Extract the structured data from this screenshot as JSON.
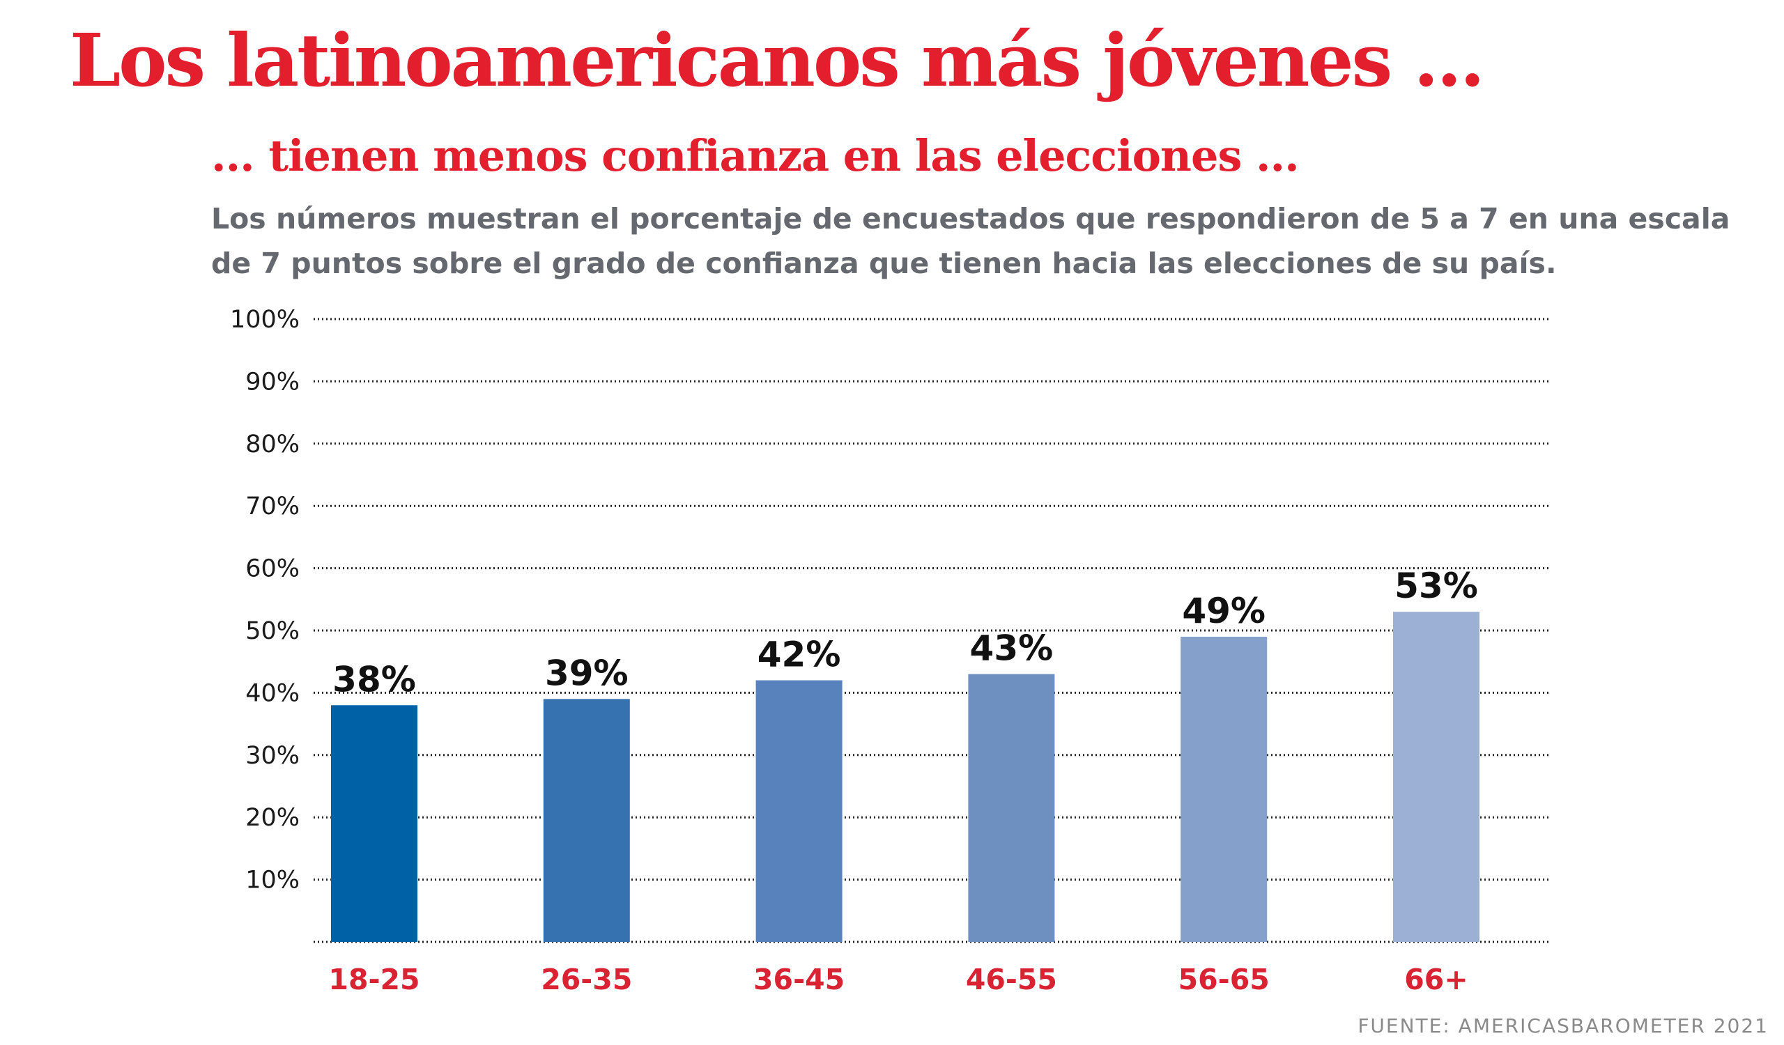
{
  "colors": {
    "title": "#e31e2d",
    "description": "#666870",
    "category_labels": "#d92333",
    "gridline": "#222222",
    "source": "#8a8a8a",
    "bars": [
      "#0061a6",
      "#3671b0",
      "#5782bb",
      "#6d90c1",
      "#84a0cb",
      "#9cb0d6"
    ]
  },
  "chart_data": {
    "type": "bar",
    "title": "Los latinoamericanos más jóvenes ...",
    "subtitle": "... tienen menos confianza en las elecciones ...",
    "description": "Los números muestran el porcentaje de encuestados que respondieron de 5 a 7 en una escala de 7 puntos sobre el grado de confianza que tienen hacia las elecciones de su país.",
    "categories": [
      "18-25",
      "26-35",
      "36-45",
      "46-55",
      "56-65",
      "66+"
    ],
    "values": [
      38,
      39,
      42,
      43,
      49,
      53
    ],
    "value_labels": [
      "38%",
      "39%",
      "42%",
      "43%",
      "49%",
      "53%"
    ],
    "ylim": [
      0,
      100
    ],
    "yticks": [
      10,
      20,
      30,
      40,
      50,
      60,
      70,
      80,
      90,
      100
    ],
    "ytick_labels": [
      "10%",
      "20%",
      "30%",
      "40%",
      "50%",
      "60%",
      "70%",
      "80%",
      "90%",
      "100%"
    ],
    "grid": true,
    "grid_style": "dotted",
    "legend": "none",
    "source": "FUENTE: AMERICASBAROMETER 2021"
  }
}
